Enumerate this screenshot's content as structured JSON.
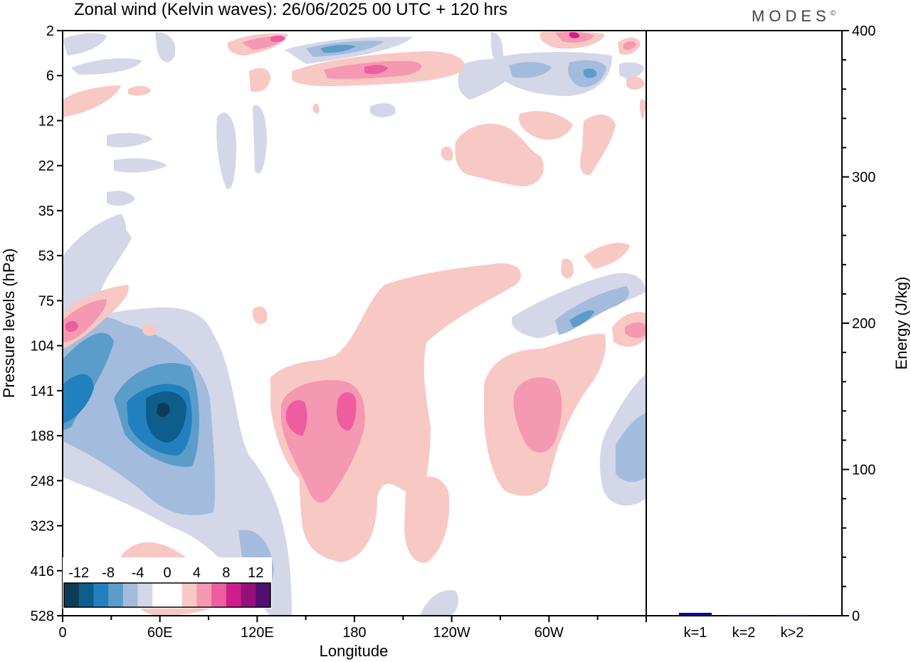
{
  "title": "Zonal wind (Kelvin waves):  26/06/2025  00 UTC  + 120 hrs",
  "brand": "MODES",
  "brand_mark": "©",
  "chart_data": [
    {
      "type": "heatmap",
      "title": "Zonal wind (Kelvin waves):  26/06/2025  00 UTC  + 120 hrs",
      "xlabel": "Longitude",
      "ylabel": "Pressure levels (hPa)",
      "x_ticks": [
        "0",
        "60E",
        "120E",
        "180",
        "120W",
        "60W"
      ],
      "y_ticks": [
        "2",
        "6",
        "12",
        "22",
        "35",
        "53",
        "75",
        "104",
        "141",
        "188",
        "248",
        "323",
        "416",
        "528"
      ],
      "colorbar": {
        "labels": [
          "-12",
          "-8",
          "-4",
          "0",
          "4",
          "8",
          "12"
        ],
        "colors": [
          "#0d3b55",
          "#0e5d8a",
          "#2280bf",
          "#5b9dc9",
          "#a3bcdd",
          "#d4d7e8",
          "#ffffff",
          "#ffffff",
          "#f8c8c4",
          "#f598b1",
          "#ee5da0",
          "#cc1f8a",
          "#96107b",
          "#520f6f"
        ]
      },
      "features": [
        {
          "lon": 28,
          "level": 141,
          "value": -8
        },
        {
          "lon": 62,
          "level": 150,
          "value": -12
        },
        {
          "lon": 145,
          "level": 165,
          "value": 8
        },
        {
          "lon": 175,
          "level": 165,
          "value": 8
        },
        {
          "lon": 280,
          "level": 160,
          "value": 8
        },
        {
          "lon": 338,
          "level": 85,
          "value": -6
        },
        {
          "lon": 355,
          "level": 188,
          "value": -6
        },
        {
          "lon": 20,
          "level": 95,
          "value": 6
        },
        {
          "lon": 250,
          "level": 4,
          "value": -6
        },
        {
          "lon": 160,
          "level": 4,
          "value": 6
        }
      ]
    },
    {
      "type": "bar",
      "ylabel": "Energy (J/kg)",
      "categories": [
        "k=1",
        "k=2",
        "k>2"
      ],
      "values": [
        2,
        0.5,
        0.5
      ],
      "ylim": [
        0,
        400
      ],
      "yticks": [
        0,
        100,
        200,
        300,
        400
      ],
      "bar_color": "#0a0a8c"
    }
  ]
}
